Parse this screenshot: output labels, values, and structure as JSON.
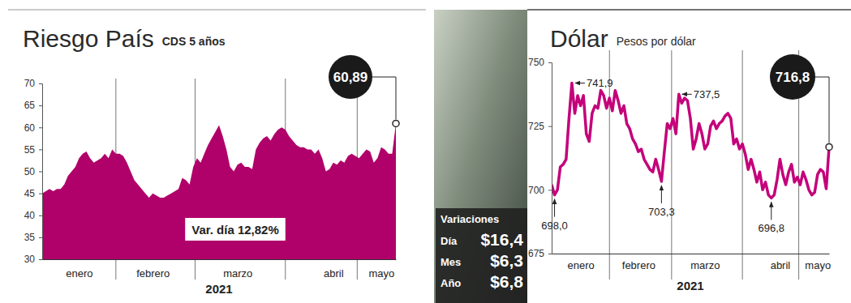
{
  "chart_data": [
    {
      "type": "area",
      "title": "Riesgo País",
      "subtitle": "CDS 5 años",
      "x_label": "2021",
      "color": "#b0006a",
      "categories": [
        null,
        null,
        null,
        null,
        null,
        null,
        null,
        null,
        null,
        null,
        "enero",
        null,
        null,
        null,
        null,
        null,
        null,
        null,
        null,
        null,
        null,
        null,
        null,
        null,
        null,
        null,
        null,
        null,
        null,
        null,
        "febrero",
        null,
        null,
        null,
        null,
        null,
        null,
        null,
        null,
        null,
        null,
        null,
        null,
        null,
        null,
        null,
        null,
        null,
        null,
        null,
        null,
        null,
        null,
        "marzo",
        null,
        null,
        null,
        null,
        null,
        null,
        null,
        null,
        null,
        null,
        null,
        null,
        null,
        null,
        null,
        null,
        null,
        null,
        null,
        null,
        null,
        null,
        null,
        null,
        null,
        "abril",
        null,
        null,
        null,
        null,
        null,
        null,
        null,
        null,
        null,
        null,
        null,
        null,
        "mayo",
        null,
        null,
        null,
        null
      ],
      "values": [
        45,
        45.5,
        46,
        45.5,
        46,
        46,
        47,
        49,
        50,
        51,
        53,
        54,
        54.5,
        53,
        52,
        52.5,
        53,
        54,
        53,
        55,
        54,
        54,
        53.5,
        52,
        50,
        48,
        47,
        46,
        45,
        44,
        45,
        44.5,
        44,
        44,
        44.5,
        45,
        45.5,
        46,
        48.5,
        48,
        47,
        51,
        53,
        52,
        54,
        56,
        57.5,
        59,
        60.5,
        58,
        55,
        51,
        50,
        51.5,
        52,
        51,
        51,
        50.5,
        55,
        56.5,
        57.5,
        58,
        57,
        58.5,
        59.5,
        60,
        59.5,
        58,
        57,
        56,
        55.5,
        55.5,
        55,
        55,
        54,
        55,
        53,
        50,
        50.5,
        52,
        51.5,
        52.5,
        52,
        53.5,
        54,
        53.5,
        53,
        54,
        55,
        54.5,
        52,
        53,
        55.5,
        55,
        54,
        54,
        60.89
      ],
      "ylim": [
        30,
        70
      ],
      "yticks": [
        30,
        35,
        40,
        45,
        50,
        55,
        60,
        65,
        70
      ],
      "annotations": [
        {
          "label": "60,89",
          "value": 60.89
        }
      ],
      "note": "Var. día 12,82%"
    },
    {
      "type": "line",
      "title": "Dólar",
      "subtitle": "Pesos por dólar",
      "x_label": "2021",
      "color": "#c4007a",
      "categories": [
        null,
        null,
        null,
        null,
        null,
        null,
        null,
        null,
        null,
        null,
        "enero",
        null,
        null,
        null,
        null,
        null,
        null,
        null,
        null,
        null,
        null,
        null,
        null,
        null,
        null,
        null,
        null,
        null,
        null,
        null,
        "febrero",
        null,
        null,
        null,
        null,
        null,
        null,
        null,
        null,
        null,
        null,
        null,
        null,
        null,
        null,
        null,
        null,
        null,
        null,
        null,
        null,
        null,
        null,
        "marzo",
        null,
        null,
        null,
        null,
        null,
        null,
        null,
        null,
        null,
        null,
        null,
        null,
        null,
        null,
        null,
        null,
        null,
        null,
        null,
        null,
        null,
        null,
        null,
        null,
        null,
        "abril",
        null,
        null,
        null,
        null,
        null,
        null,
        null,
        null,
        null,
        null,
        null,
        null,
        "mayo",
        null,
        null,
        null,
        null
      ],
      "values": [
        702,
        698.0,
        700,
        709,
        710,
        712,
        728,
        741.9,
        730,
        737,
        733,
        737,
        722,
        719,
        730,
        733,
        732,
        739,
        737,
        732,
        736,
        731,
        739,
        735,
        730,
        733,
        726,
        724,
        720,
        718,
        715,
        716,
        712,
        710,
        708,
        707,
        712,
        708,
        703.3,
        715,
        726,
        724,
        728,
        722,
        737.5,
        734,
        736,
        735,
        728,
        716,
        720,
        726,
        722,
        716,
        718,
        725,
        727,
        724,
        726,
        727,
        729,
        730,
        728,
        718,
        720,
        716,
        718,
        714,
        708,
        712,
        708,
        703,
        707,
        700,
        703,
        698,
        696.8,
        698,
        704,
        712,
        706,
        702,
        707,
        710,
        703,
        705,
        702,
        707,
        704,
        700,
        698,
        699,
        706,
        708,
        707,
        700.4,
        716.8
      ],
      "ylim": [
        675,
        750
      ],
      "yticks": [
        675,
        700,
        725,
        750
      ],
      "annotations": [
        {
          "label": "741,9",
          "value": 741.9
        },
        {
          "label": "737,5",
          "value": 737.5
        },
        {
          "label": "698,0",
          "value": 698.0
        },
        {
          "label": "703,3",
          "value": 703.3
        },
        {
          "label": "696,8",
          "value": 696.8
        },
        {
          "label": "716,8",
          "value": 716.8
        }
      ],
      "variations": {
        "title": "Variaciones",
        "items": [
          {
            "label": "Día",
            "text": "$16,4"
          },
          {
            "label": "Mes",
            "text": "$6,3"
          },
          {
            "label": "Año",
            "text": "$6,8"
          }
        ]
      }
    }
  ]
}
